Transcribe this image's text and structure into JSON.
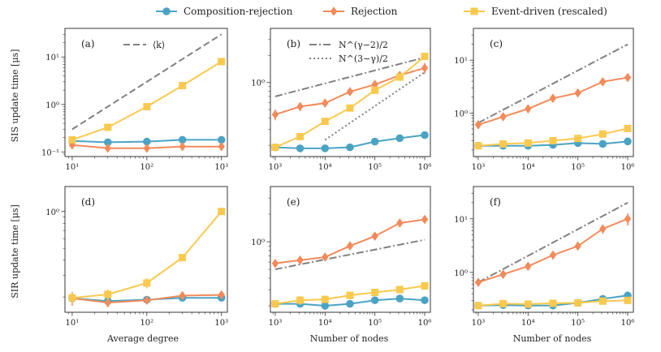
{
  "colors": {
    "composition": "#4ba3c3",
    "rejection": "#f28a5a",
    "event": "#f9c94e",
    "reference": "#808080"
  },
  "legend": [
    {
      "key": "composition",
      "label": "Composition-rejection",
      "marker": "circle"
    },
    {
      "key": "rejection",
      "label": "Rejection",
      "marker": "diamond"
    },
    {
      "key": "event",
      "label": "Event-driven (rescaled)",
      "marker": "square"
    }
  ],
  "row_labels": [
    "SIS update time [μs]",
    "SIR update time [μs]"
  ],
  "col_labels": [
    "Average degree",
    "Number of nodes",
    "Number of nodes"
  ],
  "chart_data": [
    {
      "id": "a",
      "label": "(a)",
      "type": "line",
      "xscale": "log",
      "yscale": "log",
      "xlim": [
        8,
        1200
      ],
      "ylim": [
        0.08,
        40
      ],
      "xticks": [
        10,
        100,
        1000
      ],
      "xticklabels": [
        "10¹",
        "10²",
        "10³"
      ],
      "yticks": [
        0.1,
        1,
        10
      ],
      "yticklabels": [
        "10⁻¹",
        "10⁰",
        "10¹"
      ],
      "x": [
        10,
        30,
        100,
        300,
        1000
      ],
      "series": [
        {
          "key": "composition",
          "values": [
            0.17,
            0.16,
            0.165,
            0.18,
            0.18
          ],
          "errors": [
            0.01,
            0.01,
            0.01,
            0.01,
            0.01
          ]
        },
        {
          "key": "rejection",
          "values": [
            0.14,
            0.12,
            0.12,
            0.13,
            0.13
          ],
          "errors": [
            0.02,
            0.01,
            0.01,
            0.01,
            0.01
          ]
        },
        {
          "key": "event",
          "values": [
            0.18,
            0.33,
            0.9,
            2.5,
            8.0
          ],
          "errors": [
            0.01,
            0.02,
            0.05,
            0.15,
            0.5
          ]
        }
      ],
      "references": [
        {
          "label": "⟨k⟩",
          "style": "dashed",
          "x": [
            10,
            1000
          ],
          "y": [
            0.3,
            30
          ]
        }
      ]
    },
    {
      "id": "b",
      "label": "(b)",
      "type": "line",
      "xscale": "log",
      "yscale": "log",
      "xlim": [
        800,
        1300000
      ],
      "ylim": [
        0.15,
        4
      ],
      "xticks": [
        1000,
        10000,
        100000,
        1000000
      ],
      "xticklabels": [
        "10³",
        "10⁴",
        "10⁵",
        "10⁶"
      ],
      "yticks": [
        1
      ],
      "yticklabels": [
        "10⁰"
      ],
      "x": [
        1000,
        3160,
        10000,
        31600,
        100000,
        316000,
        1000000
      ],
      "series": [
        {
          "key": "composition",
          "values": [
            0.19,
            0.185,
            0.185,
            0.19,
            0.22,
            0.24,
            0.26
          ],
          "errors": [
            0.005,
            0.005,
            0.005,
            0.005,
            0.005,
            0.005,
            0.005
          ]
        },
        {
          "key": "rejection",
          "values": [
            0.44,
            0.54,
            0.59,
            0.79,
            0.95,
            1.2,
            1.45
          ],
          "errors": [
            0.06,
            0.06,
            0.06,
            0.08,
            0.1,
            0.12,
            0.2
          ]
        },
        {
          "key": "event",
          "values": [
            0.19,
            0.25,
            0.37,
            0.52,
            0.82,
            1.15,
            1.95
          ],
          "errors": [
            0.01,
            0.01,
            0.02,
            0.02,
            0.03,
            0.04,
            0.06
          ]
        }
      ],
      "references": [
        {
          "label": "N^(γ−2)/2",
          "style": "dashdot",
          "x": [
            1000,
            1000000
          ],
          "y": [
            0.7,
            1.9
          ]
        },
        {
          "label": "N^(3−γ)/2",
          "style": "dotted",
          "x": [
            10000,
            1000000
          ],
          "y": [
            0.23,
            1.3
          ]
        }
      ]
    },
    {
      "id": "c",
      "label": "(c)",
      "type": "line",
      "xscale": "log",
      "yscale": "log",
      "xlim": [
        800,
        1300000
      ],
      "ylim": [
        0.15,
        40
      ],
      "xticks": [
        1000,
        10000,
        100000,
        1000000
      ],
      "xticklabels": [
        "10³",
        "10⁴",
        "10⁵",
        "10⁶"
      ],
      "yticks": [
        1,
        10
      ],
      "yticklabels": [
        "10⁰",
        "10¹"
      ],
      "x": [
        1000,
        3160,
        10000,
        31600,
        100000,
        316000,
        1000000
      ],
      "series": [
        {
          "key": "composition",
          "values": [
            0.24,
            0.24,
            0.24,
            0.25,
            0.27,
            0.26,
            0.29
          ],
          "errors": [
            0.01,
            0.01,
            0.01,
            0.01,
            0.01,
            0.01,
            0.01
          ]
        },
        {
          "key": "rejection",
          "values": [
            0.6,
            0.85,
            1.2,
            1.9,
            2.4,
            3.9,
            4.7
          ],
          "errors": [
            0.08,
            0.1,
            0.15,
            0.25,
            0.3,
            0.5,
            0.7
          ]
        },
        {
          "key": "event",
          "values": [
            0.24,
            0.26,
            0.27,
            0.3,
            0.33,
            0.4,
            0.51
          ],
          "errors": [
            0.01,
            0.01,
            0.01,
            0.02,
            0.02,
            0.02,
            0.02
          ]
        }
      ],
      "references": [
        {
          "label": "",
          "style": "dashdot",
          "x": [
            1000,
            1000000
          ],
          "y": [
            0.65,
            20
          ]
        }
      ]
    },
    {
      "id": "d",
      "label": "(d)",
      "type": "line",
      "xscale": "log",
      "yscale": "log",
      "xlim": [
        8,
        1200
      ],
      "ylim": [
        0.15,
        1.6
      ],
      "xticks": [
        10,
        100,
        1000
      ],
      "xticklabels": [
        "10¹",
        "10²",
        "10³"
      ],
      "yticks": [
        1
      ],
      "yticklabels": [
        "10⁰"
      ],
      "x": [
        10,
        30,
        100,
        300,
        1000
      ],
      "series": [
        {
          "key": "composition",
          "values": [
            0.195,
            0.185,
            0.19,
            0.197,
            0.197
          ],
          "errors": [
            0.005,
            0.005,
            0.005,
            0.005,
            0.005
          ]
        },
        {
          "key": "rejection",
          "values": [
            0.195,
            0.18,
            0.188,
            0.205,
            0.208
          ],
          "errors": [
            0.025,
            0.015,
            0.01,
            0.01,
            0.01
          ]
        },
        {
          "key": "event",
          "values": [
            0.197,
            0.21,
            0.26,
            0.42,
            1.0
          ],
          "errors": [
            0.02,
            0.02,
            0.025,
            0.02,
            0.06
          ]
        }
      ],
      "references": []
    },
    {
      "id": "e",
      "label": "(e)",
      "type": "line",
      "xscale": "log",
      "yscale": "log",
      "xlim": [
        800,
        1300000
      ],
      "ylim": [
        0.17,
        4
      ],
      "xticks": [
        1000,
        10000,
        100000,
        1000000
      ],
      "xticklabels": [
        "10³",
        "10⁴",
        "10⁵",
        "10⁶"
      ],
      "yticks": [
        1
      ],
      "yticklabels": [
        "10⁰"
      ],
      "x": [
        1000,
        3160,
        10000,
        31600,
        100000,
        316000,
        1000000
      ],
      "series": [
        {
          "key": "composition",
          "values": [
            0.21,
            0.21,
            0.2,
            0.21,
            0.23,
            0.24,
            0.23
          ],
          "errors": [
            0.01,
            0.01,
            0.01,
            0.01,
            0.01,
            0.01,
            0.01
          ]
        },
        {
          "key": "rejection",
          "values": [
            0.58,
            0.63,
            0.68,
            0.9,
            1.15,
            1.6,
            1.75
          ],
          "errors": [
            0.05,
            0.05,
            0.05,
            0.08,
            0.1,
            0.12,
            0.15
          ]
        },
        {
          "key": "event",
          "values": [
            0.21,
            0.23,
            0.235,
            0.26,
            0.28,
            0.3,
            0.33
          ],
          "errors": [
            0.02,
            0.025,
            0.02,
            0.025,
            0.02,
            0.02,
            0.015
          ]
        }
      ],
      "references": [
        {
          "label": "",
          "style": "dashdot",
          "x": [
            1000,
            1000000
          ],
          "y": [
            0.5,
            1.05
          ]
        }
      ]
    },
    {
      "id": "f",
      "label": "(f)",
      "type": "line",
      "xscale": "log",
      "yscale": "log",
      "xlim": [
        800,
        1300000
      ],
      "ylim": [
        0.18,
        40
      ],
      "xticks": [
        1000,
        10000,
        100000,
        1000000
      ],
      "xticklabels": [
        "10³",
        "10⁴",
        "10⁵",
        "10⁶"
      ],
      "yticks": [
        1,
        10
      ],
      "yticklabels": [
        "10⁰",
        "10¹"
      ],
      "x": [
        1000,
        3160,
        10000,
        31600,
        100000,
        316000,
        1000000
      ],
      "series": [
        {
          "key": "composition",
          "values": [
            0.24,
            0.245,
            0.24,
            0.24,
            0.27,
            0.32,
            0.37
          ],
          "errors": [
            0.01,
            0.01,
            0.01,
            0.01,
            0.01,
            0.01,
            0.01
          ]
        },
        {
          "key": "rejection",
          "values": [
            0.65,
            0.92,
            1.3,
            2.1,
            3.1,
            6.5,
            10.0
          ],
          "errors": [
            0.08,
            0.12,
            0.2,
            0.3,
            0.5,
            1.2,
            2.5
          ]
        },
        {
          "key": "event",
          "values": [
            0.24,
            0.26,
            0.255,
            0.265,
            0.27,
            0.29,
            0.3
          ],
          "errors": [
            0.01,
            0.02,
            0.01,
            0.02,
            0.01,
            0.02,
            0.01
          ]
        }
      ],
      "references": [
        {
          "label": "",
          "style": "dashdot",
          "x": [
            1000,
            1000000
          ],
          "y": [
            0.65,
            20
          ]
        }
      ]
    }
  ]
}
